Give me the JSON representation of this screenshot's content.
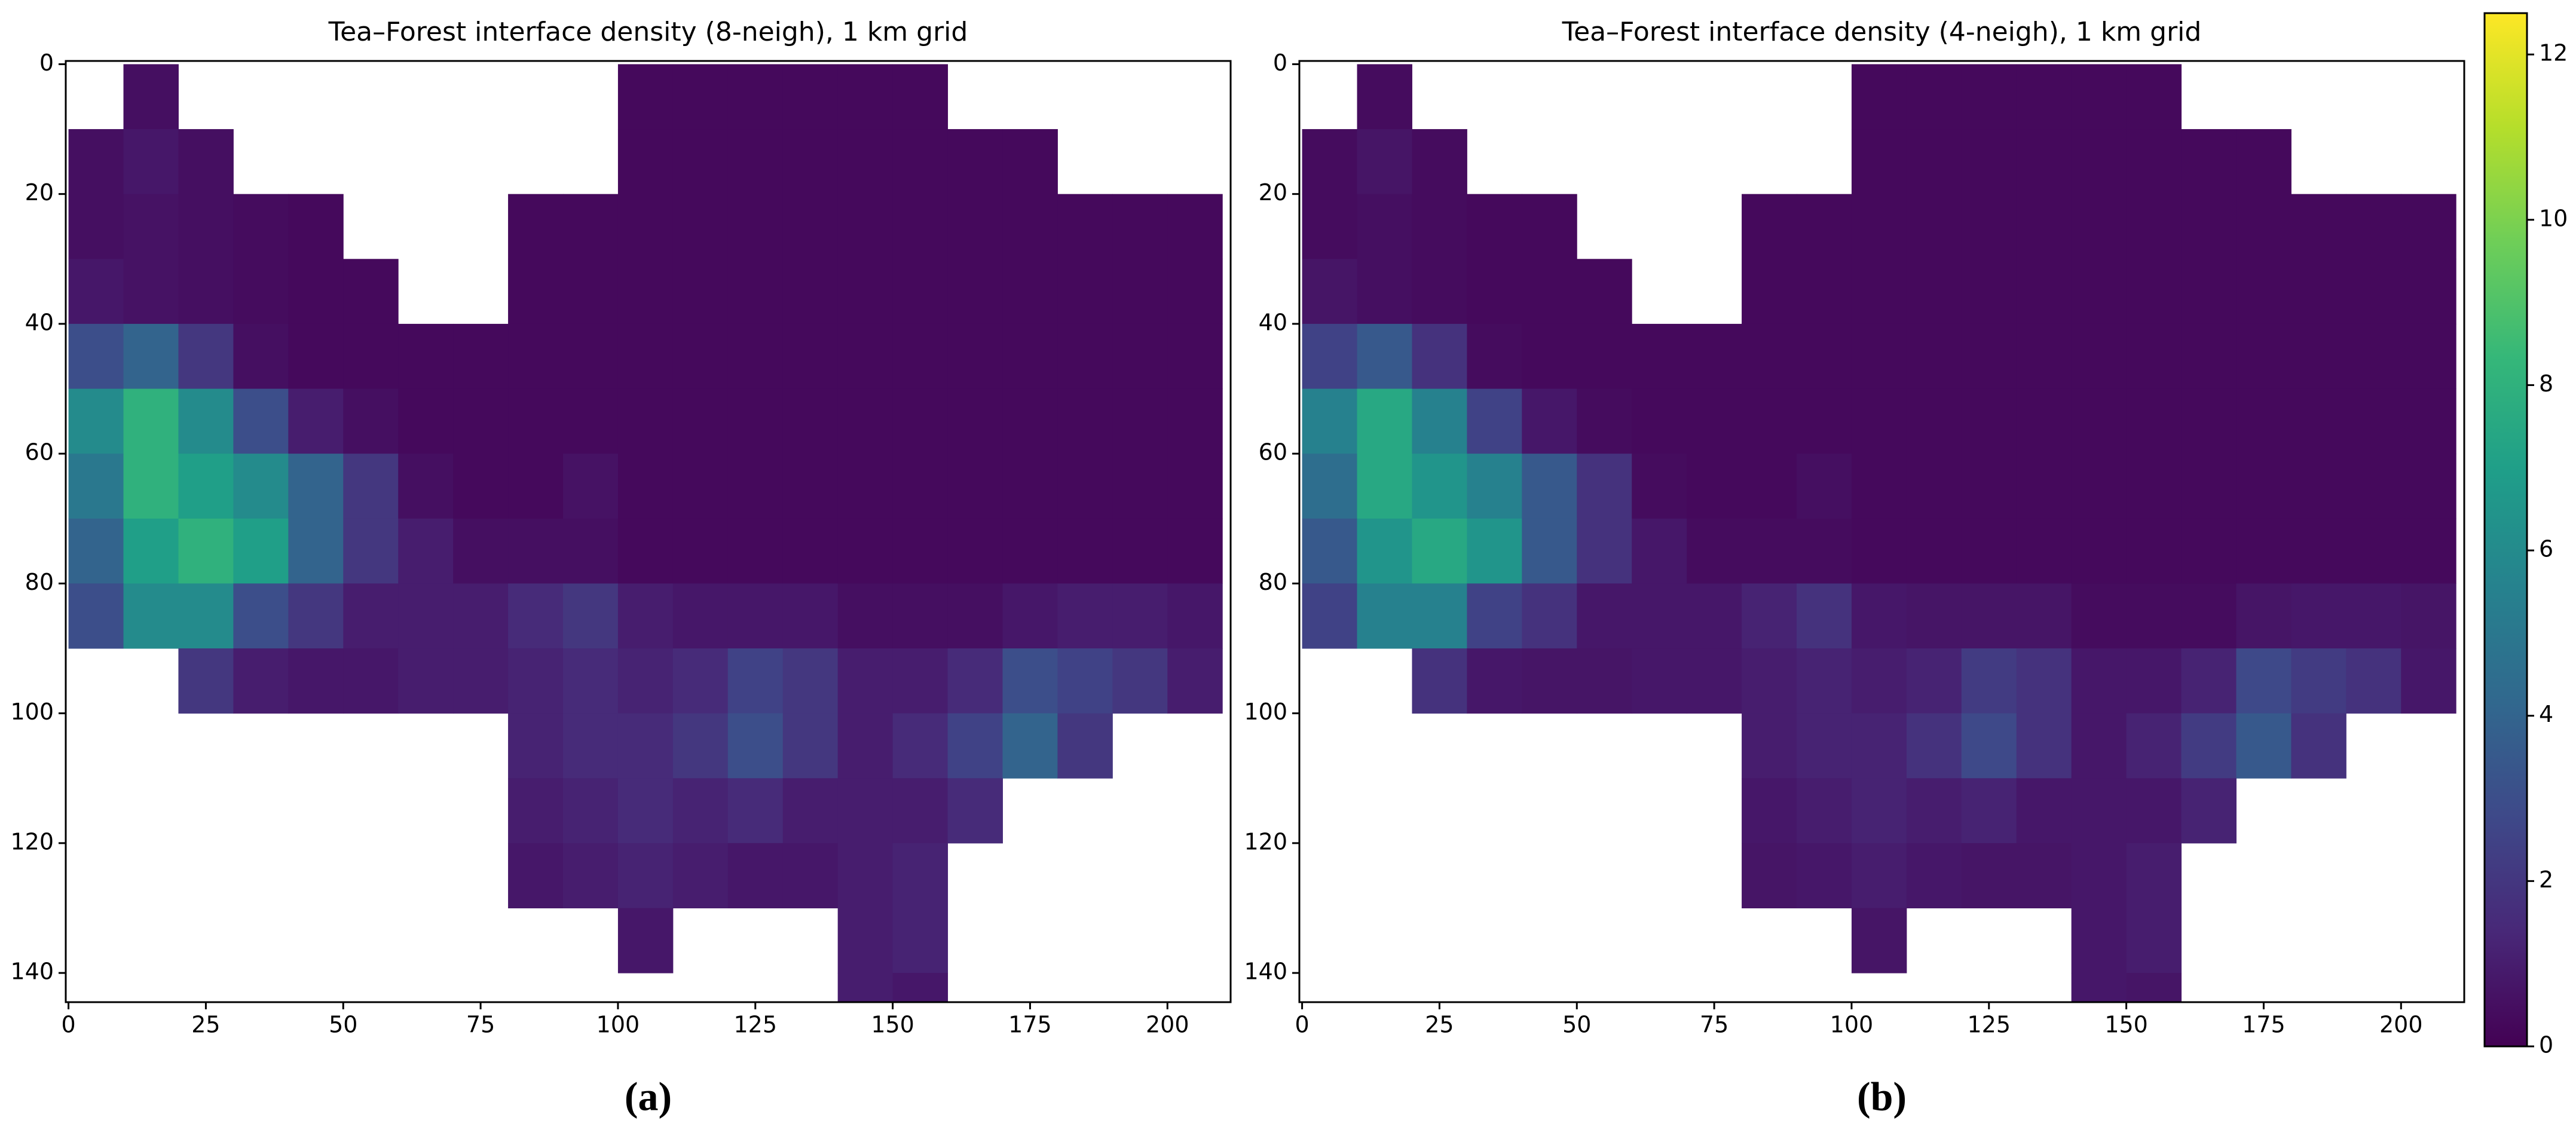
{
  "chart_data": [
    {
      "type": "heatmap",
      "title": "Tea–Forest interface density (8-neigh), 1 km grid",
      "label": "(a)",
      "x": [
        5,
        15,
        25,
        35,
        45,
        55,
        65,
        75,
        85,
        95,
        105,
        115,
        125,
        135,
        145,
        155,
        165,
        175,
        185,
        195,
        205
      ],
      "y": [
        5,
        15,
        25,
        35,
        45,
        55,
        65,
        75,
        85,
        95,
        105,
        115,
        125,
        135,
        145
      ],
      "z": [
        [
          null,
          0.5,
          null,
          null,
          null,
          null,
          null,
          null,
          null,
          null,
          0.3,
          0.3,
          0.3,
          0.3,
          0.3,
          0.3,
          null,
          null,
          null,
          null,
          null
        ],
        [
          0.5,
          0.8,
          0.5,
          null,
          null,
          null,
          null,
          null,
          null,
          null,
          0.3,
          0.3,
          0.3,
          0.3,
          0.3,
          0.3,
          0.3,
          0.3,
          null,
          null,
          null
        ],
        [
          0.5,
          0.6,
          0.5,
          0.4,
          0.3,
          null,
          null,
          null,
          0.3,
          0.3,
          0.3,
          0.3,
          0.3,
          0.3,
          0.3,
          0.3,
          0.3,
          0.3,
          0.3,
          0.3,
          0.3
        ],
        [
          0.8,
          0.6,
          0.5,
          0.4,
          0.3,
          0.3,
          null,
          null,
          0.3,
          0.3,
          0.3,
          0.3,
          0.3,
          0.3,
          0.3,
          0.3,
          0.3,
          0.3,
          0.3,
          0.3,
          0.3
        ],
        [
          3,
          4,
          2,
          0.5,
          0.3,
          0.3,
          0.3,
          0.3,
          0.3,
          0.3,
          0.3,
          0.3,
          0.3,
          0.3,
          0.3,
          0.3,
          0.3,
          0.3,
          0.3,
          0.3,
          0.3
        ],
        [
          6,
          8,
          6,
          3,
          1,
          0.5,
          0.3,
          0.3,
          0.3,
          0.3,
          0.3,
          0.3,
          0.3,
          0.3,
          0.3,
          0.3,
          0.3,
          0.3,
          0.3,
          0.3,
          0.3
        ],
        [
          5,
          8,
          7,
          6,
          4,
          2,
          0.5,
          0.3,
          0.3,
          0.6,
          0.3,
          0.3,
          0.3,
          0.3,
          0.3,
          0.3,
          0.3,
          0.3,
          0.3,
          0.3,
          0.3
        ],
        [
          4,
          7,
          8,
          7,
          4,
          2,
          1,
          0.5,
          0.5,
          0.5,
          0.3,
          0.3,
          0.3,
          0.3,
          0.3,
          0.3,
          0.3,
          0.3,
          0.3,
          0.3,
          0.3
        ],
        [
          3,
          6,
          6,
          3,
          2,
          1,
          1,
          1,
          1.5,
          2,
          1,
          0.8,
          0.8,
          0.8,
          0.5,
          0.5,
          0.5,
          0.8,
          1,
          1,
          0.8
        ],
        [
          null,
          null,
          2,
          1,
          0.8,
          0.8,
          1,
          1,
          1.2,
          1.5,
          1.2,
          1.5,
          2.5,
          2,
          1,
          1,
          1.5,
          3,
          2.5,
          2,
          1
        ],
        [
          null,
          null,
          null,
          null,
          null,
          null,
          null,
          null,
          1.2,
          1.5,
          1.5,
          2,
          3,
          2,
          1,
          1.5,
          2.5,
          4,
          2,
          null,
          null
        ],
        [
          null,
          null,
          null,
          null,
          null,
          null,
          null,
          null,
          1,
          1.2,
          1.5,
          1.2,
          1.5,
          1,
          1,
          1,
          1.5,
          null,
          null,
          null,
          null
        ],
        [
          null,
          null,
          null,
          null,
          null,
          null,
          null,
          null,
          0.8,
          1,
          1.2,
          1,
          0.8,
          0.8,
          1,
          1.2,
          null,
          null,
          null,
          null,
          null
        ],
        [
          null,
          null,
          null,
          null,
          null,
          null,
          null,
          null,
          null,
          null,
          0.8,
          null,
          null,
          null,
          1,
          1.2,
          null,
          null,
          null,
          null,
          null
        ],
        [
          null,
          null,
          null,
          null,
          null,
          null,
          null,
          null,
          null,
          null,
          null,
          null,
          null,
          null,
          1,
          0.8,
          null,
          null,
          null,
          null,
          null
        ]
      ],
      "xlim": [
        -0.5,
        211.5
      ],
      "ylim": [
        144.5,
        -0.5
      ],
      "xticks": [
        0,
        25,
        50,
        75,
        100,
        125,
        150,
        175,
        200
      ],
      "yticks": [
        0,
        20,
        40,
        60,
        80,
        100,
        120,
        140
      ]
    },
    {
      "type": "heatmap",
      "title": "Tea–Forest interface density (4-neigh), 1 km grid",
      "label": "(b)",
      "x": [
        5,
        15,
        25,
        35,
        45,
        55,
        65,
        75,
        85,
        95,
        105,
        115,
        125,
        135,
        145,
        155,
        165,
        175,
        185,
        195,
        205
      ],
      "y": [
        5,
        15,
        25,
        35,
        45,
        55,
        65,
        75,
        85,
        95,
        105,
        115,
        125,
        135,
        145
      ],
      "z": [
        [
          null,
          0.4,
          null,
          null,
          null,
          null,
          null,
          null,
          null,
          null,
          0.3,
          0.3,
          0.3,
          0.3,
          0.3,
          0.3,
          null,
          null,
          null,
          null,
          null
        ],
        [
          0.4,
          0.7,
          0.4,
          null,
          null,
          null,
          null,
          null,
          null,
          null,
          0.3,
          0.3,
          0.3,
          0.3,
          0.3,
          0.3,
          0.3,
          0.3,
          null,
          null,
          null
        ],
        [
          0.4,
          0.5,
          0.4,
          0.3,
          0.3,
          null,
          null,
          null,
          0.3,
          0.3,
          0.3,
          0.3,
          0.3,
          0.3,
          0.3,
          0.3,
          0.3,
          0.3,
          0.3,
          0.3,
          0.3
        ],
        [
          0.7,
          0.5,
          0.4,
          0.3,
          0.3,
          0.3,
          null,
          null,
          0.3,
          0.3,
          0.3,
          0.3,
          0.3,
          0.3,
          0.3,
          0.3,
          0.3,
          0.3,
          0.3,
          0.3,
          0.3
        ],
        [
          2.5,
          3.5,
          1.8,
          0.4,
          0.3,
          0.3,
          0.3,
          0.3,
          0.3,
          0.3,
          0.3,
          0.3,
          0.3,
          0.3,
          0.3,
          0.3,
          0.3,
          0.3,
          0.3,
          0.3,
          0.3
        ],
        [
          5.5,
          7.5,
          5.5,
          2.5,
          0.8,
          0.4,
          0.3,
          0.3,
          0.3,
          0.3,
          0.3,
          0.3,
          0.3,
          0.3,
          0.3,
          0.3,
          0.3,
          0.3,
          0.3,
          0.3,
          0.3
        ],
        [
          4.5,
          7.5,
          6.5,
          5.5,
          3.5,
          1.8,
          0.4,
          0.3,
          0.3,
          0.5,
          0.3,
          0.3,
          0.3,
          0.3,
          0.3,
          0.3,
          0.3,
          0.3,
          0.3,
          0.3,
          0.3
        ],
        [
          3.5,
          6.5,
          7.5,
          6.5,
          3.5,
          1.8,
          0.8,
          0.4,
          0.4,
          0.4,
          0.3,
          0.3,
          0.3,
          0.3,
          0.3,
          0.3,
          0.3,
          0.3,
          0.3,
          0.3,
          0.3
        ],
        [
          2.5,
          5.5,
          5.5,
          2.5,
          1.8,
          0.8,
          0.8,
          0.8,
          1.2,
          1.8,
          0.8,
          0.7,
          0.7,
          0.7,
          0.4,
          0.4,
          0.4,
          0.7,
          0.8,
          0.8,
          0.7
        ],
        [
          null,
          null,
          1.8,
          0.8,
          0.7,
          0.7,
          0.8,
          0.8,
          1,
          1.2,
          1,
          1.2,
          2.2,
          1.8,
          0.8,
          0.8,
          1.2,
          2.8,
          2.2,
          1.8,
          0.8
        ],
        [
          null,
          null,
          null,
          null,
          null,
          null,
          null,
          null,
          1,
          1.2,
          1.2,
          1.8,
          2.8,
          1.8,
          0.8,
          1.2,
          2.2,
          3.5,
          1.8,
          null,
          null
        ],
        [
          null,
          null,
          null,
          null,
          null,
          null,
          null,
          null,
          0.8,
          1,
          1.2,
          1,
          1.2,
          0.8,
          0.8,
          0.8,
          1.2,
          null,
          null,
          null,
          null
        ],
        [
          null,
          null,
          null,
          null,
          null,
          null,
          null,
          null,
          0.7,
          0.8,
          1,
          0.8,
          0.7,
          0.7,
          0.8,
          1,
          null,
          null,
          null,
          null,
          null
        ],
        [
          null,
          null,
          null,
          null,
          null,
          null,
          null,
          null,
          null,
          null,
          0.7,
          null,
          null,
          null,
          0.8,
          1,
          null,
          null,
          null,
          null,
          null
        ],
        [
          null,
          null,
          null,
          null,
          null,
          null,
          null,
          null,
          null,
          null,
          null,
          null,
          null,
          null,
          0.8,
          0.7,
          null,
          null,
          null,
          null,
          null
        ]
      ],
      "xlim": [
        -0.5,
        211.5
      ],
      "ylim": [
        144.5,
        -0.5
      ],
      "xticks": [
        0,
        25,
        50,
        75,
        100,
        125,
        150,
        175,
        200
      ],
      "yticks": [
        0,
        20,
        40,
        60,
        80,
        100,
        120,
        140
      ]
    }
  ],
  "colorbar": {
    "clim": [
      0,
      12.5
    ],
    "ticks": [
      0,
      2,
      4,
      6,
      8,
      10,
      12
    ],
    "colors": [
      "#440154",
      "#482878",
      "#3e4989",
      "#31688e",
      "#26828e",
      "#1f9e89",
      "#35b779",
      "#6ece58",
      "#b5de2b",
      "#fde725"
    ]
  }
}
